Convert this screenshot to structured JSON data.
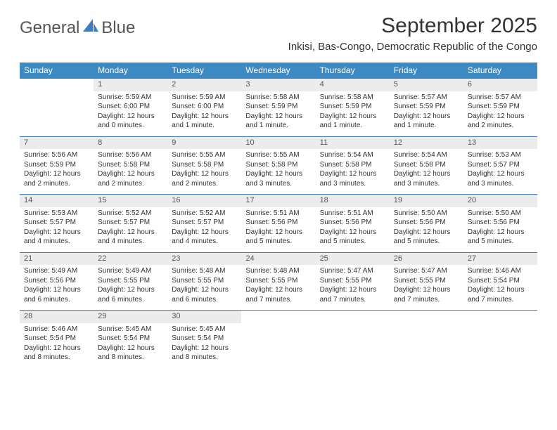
{
  "brand": {
    "general": "General",
    "blue": "Blue"
  },
  "title": "September 2025",
  "location": "Inkisi, Bas-Congo, Democratic Republic of the Congo",
  "colors": {
    "header_bg": "#3d89c3",
    "header_text": "#ffffff",
    "daynum_bg": "#ececec",
    "sep": "#3d7fc1",
    "text": "#333333",
    "logo_blue": "#3d7fc1"
  },
  "weekdays": [
    "Sunday",
    "Monday",
    "Tuesday",
    "Wednesday",
    "Thursday",
    "Friday",
    "Saturday"
  ],
  "weeks": [
    {
      "nums": [
        "",
        "1",
        "2",
        "3",
        "4",
        "5",
        "6"
      ],
      "cells": [
        null,
        {
          "sr": "Sunrise: 5:59 AM",
          "ss": "Sunset: 6:00 PM",
          "dl": "Daylight: 12 hours and 0 minutes."
        },
        {
          "sr": "Sunrise: 5:59 AM",
          "ss": "Sunset: 6:00 PM",
          "dl": "Daylight: 12 hours and 1 minute."
        },
        {
          "sr": "Sunrise: 5:58 AM",
          "ss": "Sunset: 5:59 PM",
          "dl": "Daylight: 12 hours and 1 minute."
        },
        {
          "sr": "Sunrise: 5:58 AM",
          "ss": "Sunset: 5:59 PM",
          "dl": "Daylight: 12 hours and 1 minute."
        },
        {
          "sr": "Sunrise: 5:57 AM",
          "ss": "Sunset: 5:59 PM",
          "dl": "Daylight: 12 hours and 1 minute."
        },
        {
          "sr": "Sunrise: 5:57 AM",
          "ss": "Sunset: 5:59 PM",
          "dl": "Daylight: 12 hours and 2 minutes."
        }
      ]
    },
    {
      "nums": [
        "7",
        "8",
        "9",
        "10",
        "11",
        "12",
        "13"
      ],
      "cells": [
        {
          "sr": "Sunrise: 5:56 AM",
          "ss": "Sunset: 5:59 PM",
          "dl": "Daylight: 12 hours and 2 minutes."
        },
        {
          "sr": "Sunrise: 5:56 AM",
          "ss": "Sunset: 5:58 PM",
          "dl": "Daylight: 12 hours and 2 minutes."
        },
        {
          "sr": "Sunrise: 5:55 AM",
          "ss": "Sunset: 5:58 PM",
          "dl": "Daylight: 12 hours and 2 minutes."
        },
        {
          "sr": "Sunrise: 5:55 AM",
          "ss": "Sunset: 5:58 PM",
          "dl": "Daylight: 12 hours and 3 minutes."
        },
        {
          "sr": "Sunrise: 5:54 AM",
          "ss": "Sunset: 5:58 PM",
          "dl": "Daylight: 12 hours and 3 minutes."
        },
        {
          "sr": "Sunrise: 5:54 AM",
          "ss": "Sunset: 5:58 PM",
          "dl": "Daylight: 12 hours and 3 minutes."
        },
        {
          "sr": "Sunrise: 5:53 AM",
          "ss": "Sunset: 5:57 PM",
          "dl": "Daylight: 12 hours and 3 minutes."
        }
      ]
    },
    {
      "nums": [
        "14",
        "15",
        "16",
        "17",
        "18",
        "19",
        "20"
      ],
      "cells": [
        {
          "sr": "Sunrise: 5:53 AM",
          "ss": "Sunset: 5:57 PM",
          "dl": "Daylight: 12 hours and 4 minutes."
        },
        {
          "sr": "Sunrise: 5:52 AM",
          "ss": "Sunset: 5:57 PM",
          "dl": "Daylight: 12 hours and 4 minutes."
        },
        {
          "sr": "Sunrise: 5:52 AM",
          "ss": "Sunset: 5:57 PM",
          "dl": "Daylight: 12 hours and 4 minutes."
        },
        {
          "sr": "Sunrise: 5:51 AM",
          "ss": "Sunset: 5:56 PM",
          "dl": "Daylight: 12 hours and 5 minutes."
        },
        {
          "sr": "Sunrise: 5:51 AM",
          "ss": "Sunset: 5:56 PM",
          "dl": "Daylight: 12 hours and 5 minutes."
        },
        {
          "sr": "Sunrise: 5:50 AM",
          "ss": "Sunset: 5:56 PM",
          "dl": "Daylight: 12 hours and 5 minutes."
        },
        {
          "sr": "Sunrise: 5:50 AM",
          "ss": "Sunset: 5:56 PM",
          "dl": "Daylight: 12 hours and 5 minutes."
        }
      ]
    },
    {
      "nums": [
        "21",
        "22",
        "23",
        "24",
        "25",
        "26",
        "27"
      ],
      "cells": [
        {
          "sr": "Sunrise: 5:49 AM",
          "ss": "Sunset: 5:56 PM",
          "dl": "Daylight: 12 hours and 6 minutes."
        },
        {
          "sr": "Sunrise: 5:49 AM",
          "ss": "Sunset: 5:55 PM",
          "dl": "Daylight: 12 hours and 6 minutes."
        },
        {
          "sr": "Sunrise: 5:48 AM",
          "ss": "Sunset: 5:55 PM",
          "dl": "Daylight: 12 hours and 6 minutes."
        },
        {
          "sr": "Sunrise: 5:48 AM",
          "ss": "Sunset: 5:55 PM",
          "dl": "Daylight: 12 hours and 7 minutes."
        },
        {
          "sr": "Sunrise: 5:47 AM",
          "ss": "Sunset: 5:55 PM",
          "dl": "Daylight: 12 hours and 7 minutes."
        },
        {
          "sr": "Sunrise: 5:47 AM",
          "ss": "Sunset: 5:55 PM",
          "dl": "Daylight: 12 hours and 7 minutes."
        },
        {
          "sr": "Sunrise: 5:46 AM",
          "ss": "Sunset: 5:54 PM",
          "dl": "Daylight: 12 hours and 7 minutes."
        }
      ]
    },
    {
      "nums": [
        "28",
        "29",
        "30",
        "",
        "",
        "",
        ""
      ],
      "cells": [
        {
          "sr": "Sunrise: 5:46 AM",
          "ss": "Sunset: 5:54 PM",
          "dl": "Daylight: 12 hours and 8 minutes."
        },
        {
          "sr": "Sunrise: 5:45 AM",
          "ss": "Sunset: 5:54 PM",
          "dl": "Daylight: 12 hours and 8 minutes."
        },
        {
          "sr": "Sunrise: 5:45 AM",
          "ss": "Sunset: 5:54 PM",
          "dl": "Daylight: 12 hours and 8 minutes."
        },
        null,
        null,
        null,
        null
      ]
    }
  ]
}
